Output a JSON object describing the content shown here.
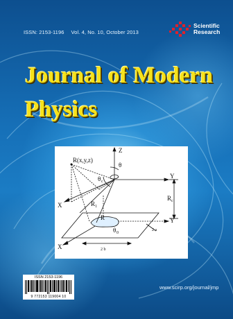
{
  "header": {
    "issn": "ISSN: 2153-1196",
    "issue": "Vol. 4, No. 10, October 2013"
  },
  "publisher": {
    "line1": "Scientific",
    "line2": "Research",
    "logo_color": "#e0202a"
  },
  "journal": {
    "title_line1": "Journal of Modern",
    "title_line2": "Physics",
    "title_color": "#f6e21a"
  },
  "figure": {
    "labels": {
      "r_point": "R(x,y,z)",
      "z_axis": "Z",
      "theta": "θ",
      "theta_c": "θ",
      "theta_c_sub": "c",
      "y_axis_upper": "Y",
      "x_axis_upper": "X",
      "r1": "R",
      "r1_sub": "1",
      "rc": "R",
      "rc_sub": "c",
      "r_lower": "R",
      "theta_0": "θ",
      "theta_0_sub": "0",
      "y_axis_lower": "Y",
      "dim_2a": "2 a",
      "dim_2b": "2 b",
      "x_axis_lower": "X"
    }
  },
  "barcode": {
    "issn": "ISSN 2153-1196",
    "number": "9 772153 119004 10"
  },
  "footer": {
    "website": "www.scirp.org/journal/jmp"
  }
}
